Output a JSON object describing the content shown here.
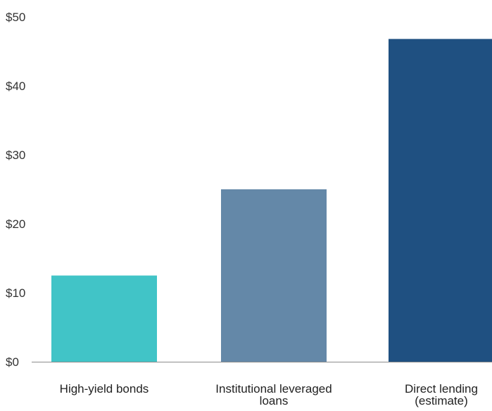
{
  "chart_data": {
    "type": "bar",
    "title": "",
    "xlabel": "",
    "ylabel": "",
    "ylim": [
      0,
      50
    ],
    "y_ticks": [
      0,
      10,
      20,
      30,
      40,
      50
    ],
    "y_tick_labels": [
      "$0",
      "$10",
      "$20",
      "$30",
      "$40",
      "$50"
    ],
    "grid": false,
    "legend": "none",
    "categories": [
      [
        "High-yield bonds"
      ],
      [
        "Institutional leveraged",
        "loans"
      ],
      [
        "Direct lending",
        "(estimate)"
      ]
    ],
    "values": [
      12.5,
      25,
      46.8
    ],
    "colors": [
      "#41c4c7",
      "#6488a8",
      "#1f5081"
    ]
  }
}
